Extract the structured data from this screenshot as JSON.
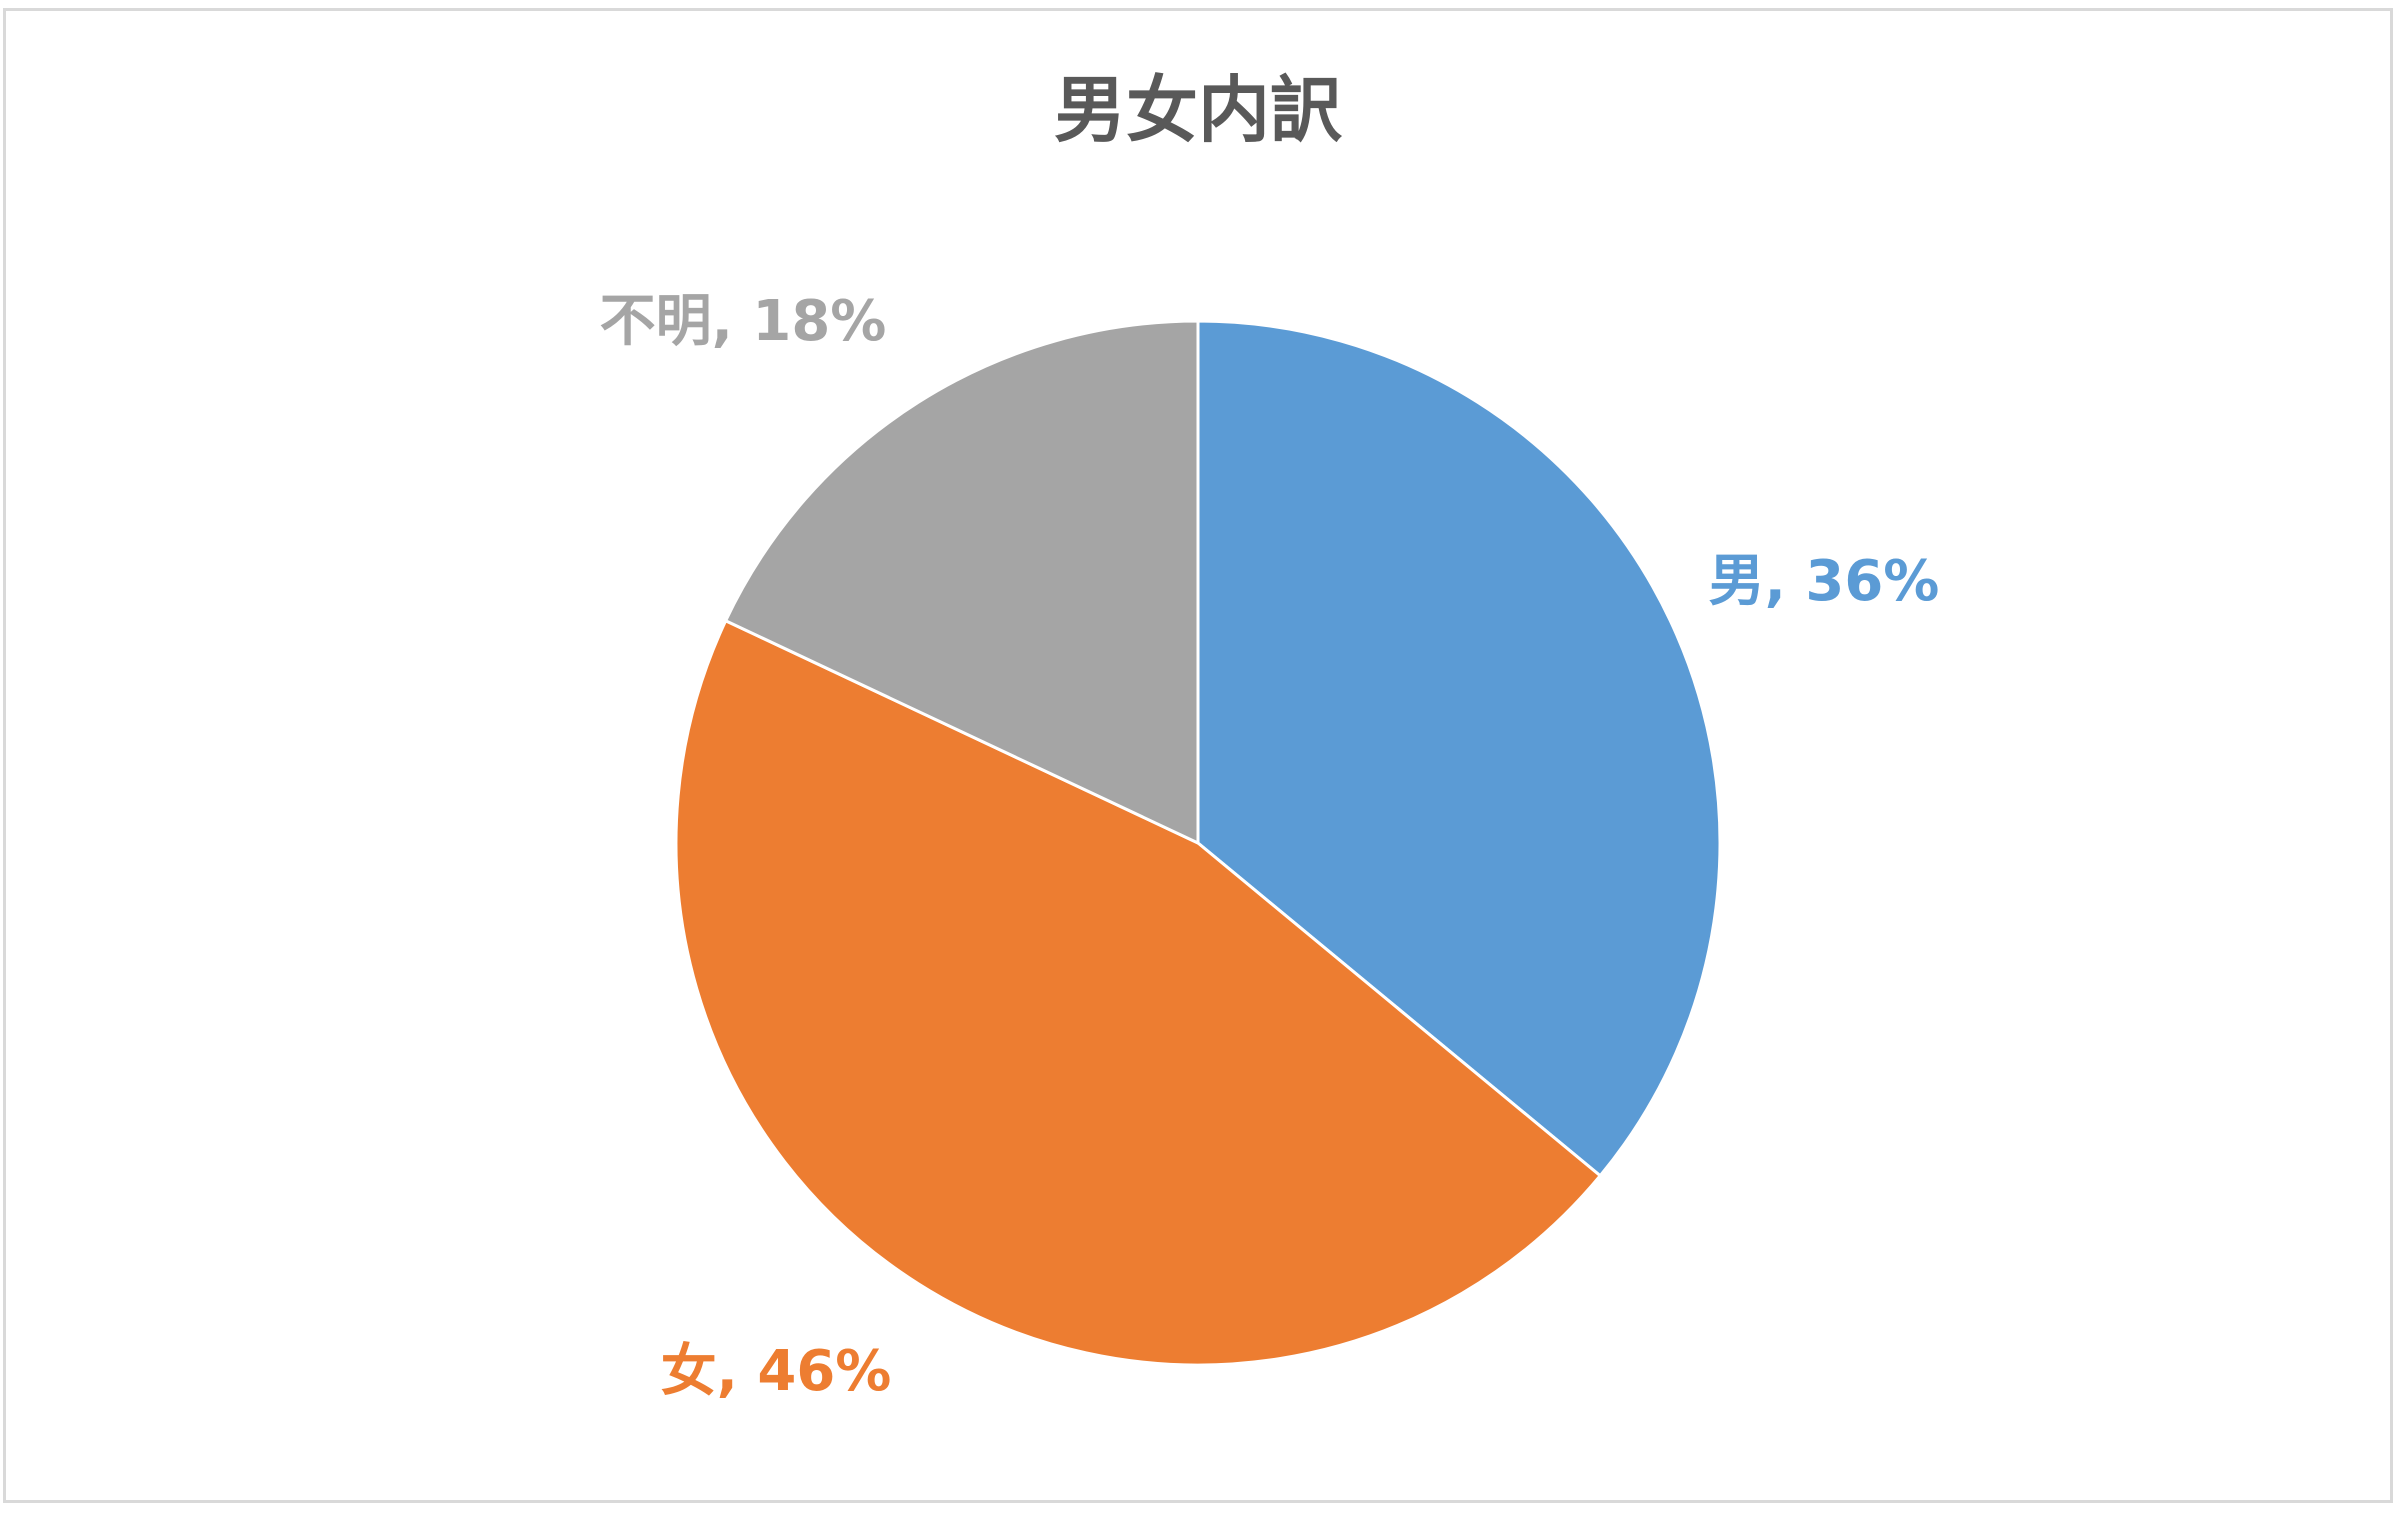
{
  "chart_data": {
    "type": "pie",
    "title": "男女内訳",
    "categories": [
      "男",
      "女",
      "不明"
    ],
    "values": [
      36,
      46,
      18
    ],
    "unit": "%",
    "colors": [
      "#5B9BD5",
      "#ED7D31",
      "#A5A5A5"
    ],
    "data_labels": [
      "男, 36%",
      "女, 46%",
      "不明, 18%"
    ],
    "start_angle": "top (12 o'clock), clockwise",
    "legend": "none"
  }
}
